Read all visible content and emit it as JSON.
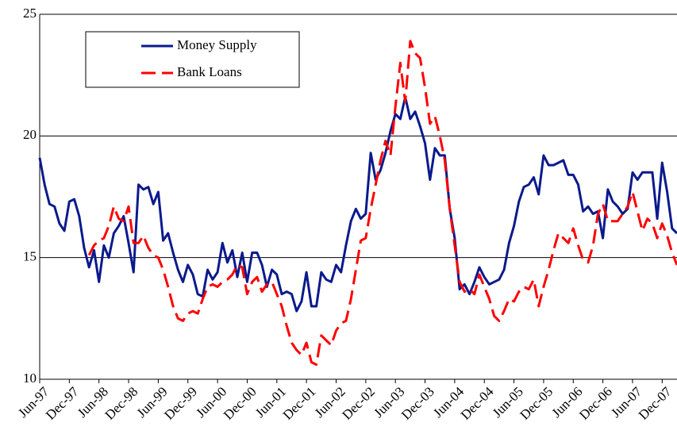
{
  "chart_data": {
    "type": "line",
    "categories": [
      "Jun-97",
      null,
      null,
      null,
      null,
      null,
      "Dec-97",
      null,
      null,
      null,
      null,
      null,
      "Jun-98",
      null,
      null,
      null,
      null,
      null,
      "Dec-98",
      null,
      null,
      null,
      null,
      null,
      "Jun-99",
      null,
      null,
      null,
      null,
      null,
      "Dec-99",
      null,
      null,
      null,
      null,
      null,
      "Jun-00",
      null,
      null,
      null,
      null,
      null,
      "Dec-00",
      null,
      null,
      null,
      null,
      null,
      "Jun-01",
      null,
      null,
      null,
      null,
      null,
      "Dec-01",
      null,
      null,
      null,
      null,
      null,
      "Jun-02",
      null,
      null,
      null,
      null,
      null,
      "Dec-02",
      null,
      null,
      null,
      null,
      null,
      "Jun-03",
      null,
      null,
      null,
      null,
      null,
      "Dec-03",
      null,
      null,
      null,
      null,
      null,
      "Jun-04",
      null,
      null,
      null,
      null,
      null,
      "Dec-04",
      null,
      null,
      null,
      null,
      null,
      "Jun-05",
      null,
      null,
      null,
      null,
      null,
      "Dec-05",
      null,
      null,
      null,
      null,
      null,
      "Jun-06",
      null,
      null,
      null,
      null,
      null,
      "Dec-06",
      null,
      null,
      null,
      null,
      null,
      "Jun-07",
      null,
      null,
      null,
      null,
      null,
      "Dec-07",
      null,
      null,
      null
    ],
    "series": [
      {
        "name": "Money Supply",
        "color": "#0a1a8c",
        "dash": false,
        "values": [
          19.1,
          18.0,
          17.2,
          17.1,
          16.4,
          16.1,
          17.3,
          17.4,
          16.7,
          15.4,
          14.6,
          15.3,
          14.0,
          15.5,
          15.0,
          16.0,
          16.3,
          16.7,
          15.6,
          14.4,
          18.0,
          17.8,
          17.9,
          17.2,
          17.7,
          15.7,
          16.0,
          15.2,
          14.5,
          14.0,
          14.7,
          14.3,
          13.5,
          13.4,
          14.5,
          14.1,
          14.4,
          15.6,
          14.8,
          15.3,
          14.2,
          15.2,
          14.0,
          15.2,
          15.2,
          14.7,
          13.8,
          14.5,
          14.3,
          13.5,
          13.6,
          13.5,
          12.8,
          13.2,
          14.4,
          13.0,
          13.0,
          14.4,
          14.1,
          14.0,
          14.7,
          14.4,
          15.5,
          16.5,
          17.0,
          16.6,
          16.8,
          19.3,
          18.2,
          18.6,
          19.3,
          20.2,
          20.9,
          20.7,
          21.6,
          20.7,
          21.0,
          20.4,
          19.7,
          18.2,
          19.5,
          19.2,
          19.2,
          17.0,
          15.8,
          13.7,
          13.9,
          13.5,
          14.0,
          14.6,
          14.2,
          13.9,
          14.0,
          14.1,
          14.5,
          15.6,
          16.3,
          17.3,
          17.9,
          18.0,
          18.3,
          17.6,
          19.2,
          18.8,
          18.8,
          18.9,
          19.0,
          18.4,
          18.4,
          18.0,
          16.9,
          17.1,
          16.8,
          16.9,
          15.8,
          17.8,
          17.3,
          17.1,
          16.8,
          17.0,
          18.5,
          18.2,
          18.5,
          18.5,
          18.5,
          16.6,
          18.9,
          17.7,
          16.2,
          16.0
        ]
      },
      {
        "name": "Bank Loans",
        "color": "#ff0000",
        "dash": true,
        "values": [
          null,
          null,
          null,
          null,
          null,
          null,
          null,
          null,
          null,
          null,
          15.1,
          15.5,
          15.7,
          15.8,
          16.3,
          17.1,
          16.6,
          16.5,
          17.1,
          15.6,
          15.6,
          15.9,
          15.4,
          15.1,
          15.0,
          14.5,
          13.8,
          13.0,
          12.5,
          12.4,
          12.7,
          12.8,
          12.7,
          13.3,
          13.8,
          13.9,
          13.8,
          14.0,
          14.1,
          14.3,
          14.7,
          14.6,
          13.5,
          14.0,
          14.2,
          13.6,
          13.9,
          14.0,
          13.5,
          13.0,
          12.2,
          11.5,
          11.2,
          11.0,
          11.5,
          10.7,
          10.6,
          11.8,
          11.6,
          11.4,
          12.0,
          12.3,
          12.4,
          13.3,
          14.5,
          15.7,
          15.8,
          17.0,
          18.0,
          19.0,
          19.8,
          19.2,
          21.2,
          23.0,
          21.4,
          23.9,
          23.4,
          23.2,
          22.0,
          20.5,
          20.8,
          20.0,
          19.0,
          17.0,
          15.5,
          14.0,
          13.6,
          13.7,
          13.5,
          14.3,
          13.8,
          13.3,
          12.6,
          12.4,
          12.8,
          13.3,
          13.2,
          13.6,
          13.8,
          13.7,
          14.1,
          13.0,
          13.8,
          14.5,
          15.3,
          16.0,
          15.8,
          15.6,
          16.2,
          15.5,
          14.9,
          14.8,
          15.5,
          16.8,
          17.2,
          16.5,
          16.5,
          16.5,
          16.8,
          17.1,
          17.7,
          16.9,
          16.1,
          16.6,
          16.4,
          15.8,
          16.4,
          15.9,
          15.2,
          14.7
        ]
      }
    ],
    "ylim": [
      10,
      25
    ],
    "yticks": [
      10,
      15,
      20,
      25
    ],
    "grid": true,
    "legend": "upper left"
  }
}
